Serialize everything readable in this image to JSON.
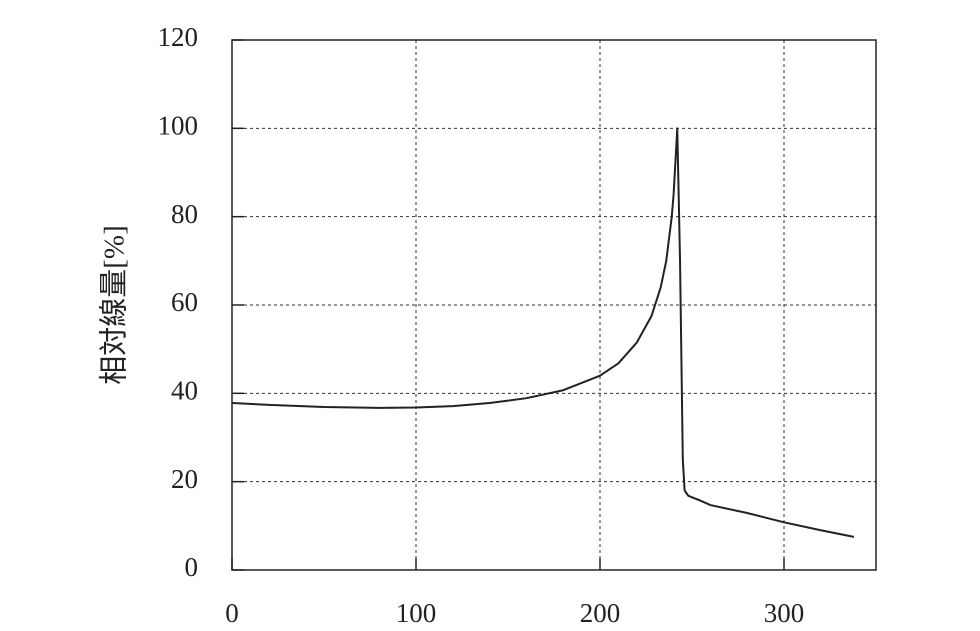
{
  "chart_data": {
    "type": "line",
    "y_label": "相対線量[%]",
    "x": [
      0,
      20,
      50,
      80,
      100,
      120,
      140,
      160,
      180,
      200,
      210,
      220,
      228,
      233,
      236,
      239,
      240,
      242,
      243.5,
      244.5,
      245,
      246,
      248,
      254,
      260,
      280,
      300,
      320,
      338
    ],
    "series": [
      {
        "color": "#222222",
        "values": [
          37.8,
          37.4,
          36.9,
          36.7,
          36.8,
          37.1,
          37.8,
          38.9,
          40.7,
          44,
          46.8,
          51.5,
          57.5,
          64,
          70,
          80,
          85,
          100,
          70,
          40,
          25,
          18,
          16.8,
          15.8,
          14.7,
          12.9,
          10.8,
          9.0,
          7.5
        ]
      }
    ],
    "xlim": [
      0,
      350
    ],
    "xticks": [
      0,
      100,
      200,
      300
    ],
    "ylim": [
      0,
      120
    ],
    "yticks": [
      0,
      20,
      40,
      60,
      80,
      100,
      120
    ],
    "grid": true
  }
}
